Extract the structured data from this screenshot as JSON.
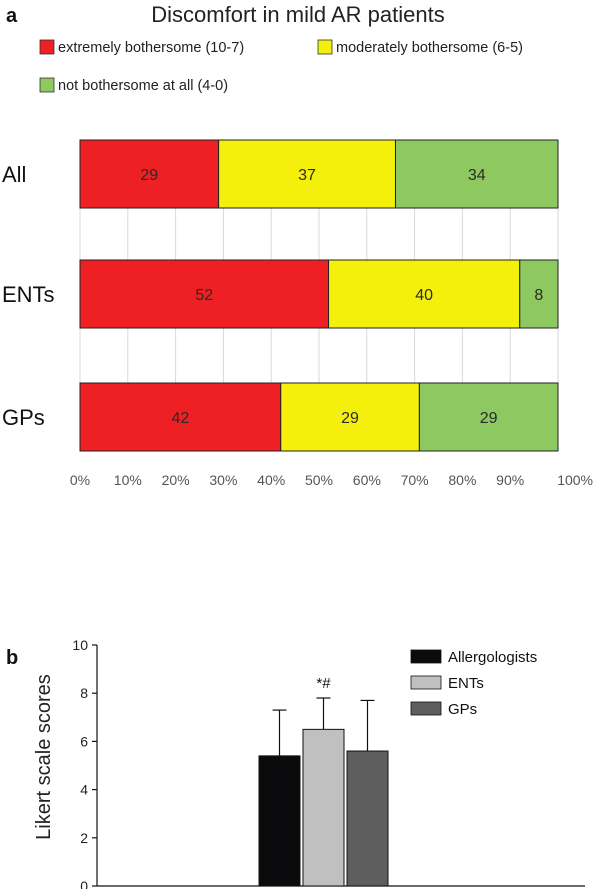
{
  "panels": {
    "a": {
      "letter": "a"
    },
    "b": {
      "letter": "b"
    }
  },
  "chart_data": [
    {
      "type": "bar",
      "orientation": "horizontal",
      "stacked": true,
      "title": "Discomfort in mild AR patients",
      "categories": [
        "All",
        "ENTs",
        "GPs"
      ],
      "series": [
        {
          "name": "extremely bothersome (10-7)",
          "color": "#ee2024",
          "values": [
            29,
            52,
            42
          ]
        },
        {
          "name": "moderately bothersome (6-5)",
          "color": "#f5f00b",
          "values": [
            37,
            40,
            29
          ]
        },
        {
          "name": "not bothersome at all (4-0)",
          "color": "#8dc860",
          "values": [
            34,
            8,
            29
          ]
        }
      ],
      "xlim": [
        0,
        100
      ],
      "xticks": [
        "0%",
        "10%",
        "20%",
        "30%",
        "40%",
        "50%",
        "60%",
        "70%",
        "80%",
        "90%",
        "100%"
      ],
      "grid": true,
      "legend_position": "top"
    },
    {
      "type": "bar",
      "title": "",
      "ylabel": "Likert scale scores",
      "ylim": [
        0,
        10
      ],
      "yticks": [
        "0",
        "2",
        "4",
        "6",
        "8",
        "10"
      ],
      "series": [
        {
          "name": "Allergologists",
          "color": "#0b0b0d",
          "value": 5.4,
          "error": 1.9
        },
        {
          "name": "ENTs",
          "color": "#c0c0c0",
          "value": 6.5,
          "error": 1.3,
          "annotation": "*#"
        },
        {
          "name": "GPs",
          "color": "#5e5e5e",
          "value": 5.6,
          "error": 2.1
        }
      ],
      "grid": false,
      "legend_position": "top-right"
    }
  ]
}
